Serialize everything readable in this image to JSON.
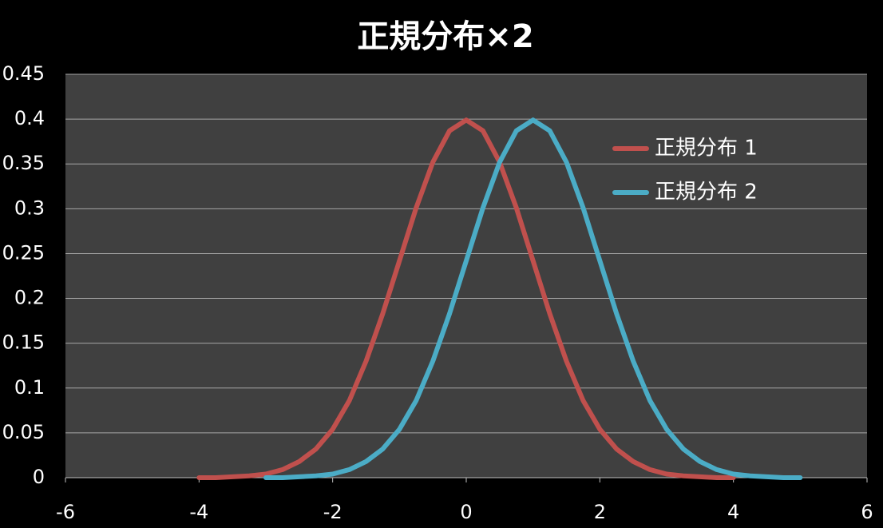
{
  "chart_data": {
    "type": "line",
    "title": "正規分布×2",
    "x": [
      -4,
      -3.75,
      -3.5,
      -3.25,
      -3,
      -2.75,
      -2.5,
      -2.25,
      -2,
      -1.75,
      -1.5,
      -1.25,
      -1,
      -0.75,
      -0.5,
      -0.25,
      0,
      0.25,
      0.5,
      0.75,
      1,
      1.25,
      1.5,
      1.75,
      2,
      2.25,
      2.5,
      2.75,
      3,
      3.25,
      3.5,
      3.75,
      4,
      4.25,
      4.5,
      4.75,
      5
    ],
    "series": [
      {
        "name": "正規分布 1",
        "color": "#c0504d",
        "values": [
          0,
          0,
          0.001,
          0.002,
          0.004,
          0.009,
          0.018,
          0.032,
          0.054,
          0.086,
          0.13,
          0.183,
          0.242,
          0.301,
          0.352,
          0.387,
          0.399,
          0.387,
          0.352,
          0.301,
          0.242,
          0.183,
          0.13,
          0.086,
          0.054,
          0.032,
          0.018,
          0.009,
          0.004,
          0.002,
          0.001,
          0,
          0,
          null,
          null,
          null,
          null
        ]
      },
      {
        "name": "正規分布 2",
        "color": "#4bacc6",
        "values": [
          null,
          null,
          null,
          null,
          0,
          0,
          0.001,
          0.002,
          0.004,
          0.009,
          0.018,
          0.032,
          0.054,
          0.086,
          0.13,
          0.183,
          0.242,
          0.301,
          0.352,
          0.387,
          0.399,
          0.387,
          0.352,
          0.301,
          0.242,
          0.183,
          0.13,
          0.086,
          0.054,
          0.032,
          0.018,
          0.009,
          0.004,
          0.002,
          0.001,
          0,
          0
        ]
      }
    ],
    "xlim": [
      -6,
      6
    ],
    "xticks": [
      -6,
      -4,
      -2,
      0,
      2,
      4,
      6
    ],
    "ylim": [
      0,
      0.45
    ],
    "yticks": [
      0,
      0.05,
      0.1,
      0.15,
      0.2,
      0.25,
      0.3,
      0.35,
      0.4,
      0.45
    ],
    "grid": true,
    "legend": "upper right"
  }
}
